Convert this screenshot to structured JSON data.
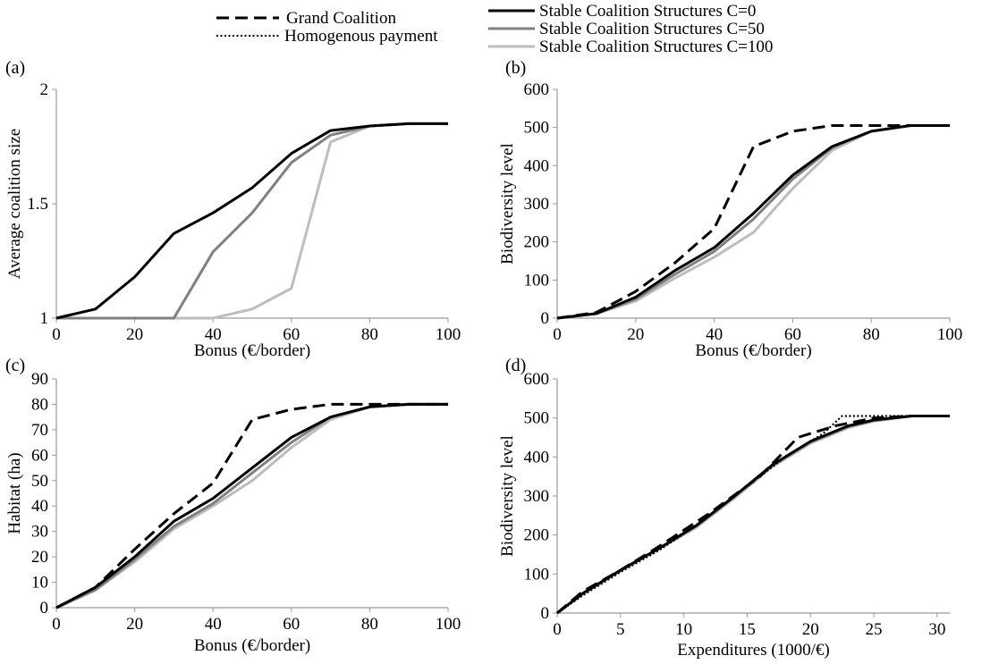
{
  "legend": [
    {
      "label": "Grand Coalition",
      "color": "#000000",
      "dash": "dashed"
    },
    {
      "label": "Homogenous payment",
      "color": "#000000",
      "dash": "dotted"
    },
    {
      "label": "Stable Coalition Structures C=0",
      "color": "#000000",
      "dash": "solid"
    },
    {
      "label": "Stable Coalition Structures C=50",
      "color": "#808080",
      "dash": "solid"
    },
    {
      "label": "Stable Coalition Structures C=100",
      "color": "#bdbdbd",
      "dash": "solid"
    }
  ],
  "chart_data": [
    {
      "panel": "(a)",
      "type": "line",
      "xlabel": "Bonus (€/border)",
      "ylabel": "Average coalition size",
      "xlim": [
        0,
        100
      ],
      "ylim": [
        1,
        2
      ],
      "xticks": [
        0,
        20,
        40,
        60,
        80,
        100
      ],
      "yticks": [
        1,
        1.5,
        2
      ],
      "ytick_labels": [
        "1",
        "1.5",
        "2"
      ],
      "grid": false,
      "series": [
        {
          "name": "Stable Coalition Structures C=0",
          "color": "#000000",
          "dash": "solid",
          "x": [
            0,
            10,
            20,
            30,
            40,
            50,
            60,
            70,
            80,
            90,
            100
          ],
          "y": [
            1.0,
            1.04,
            1.18,
            1.37,
            1.46,
            1.57,
            1.72,
            1.82,
            1.84,
            1.85,
            1.85
          ]
        },
        {
          "name": "Stable Coalition Structures C=50",
          "color": "#808080",
          "dash": "solid",
          "x": [
            0,
            10,
            20,
            30,
            40,
            50,
            60,
            70,
            80,
            90,
            100
          ],
          "y": [
            1.0,
            1.0,
            1.0,
            1.0,
            1.29,
            1.46,
            1.68,
            1.8,
            1.84,
            1.85,
            1.85
          ]
        },
        {
          "name": "Stable Coalition Structures C=100",
          "color": "#bdbdbd",
          "dash": "solid",
          "x": [
            0,
            10,
            20,
            30,
            40,
            50,
            60,
            70,
            80,
            90,
            100
          ],
          "y": [
            1.0,
            1.0,
            1.0,
            1.0,
            1.0,
            1.04,
            1.13,
            1.77,
            1.84,
            1.85,
            1.85
          ]
        }
      ]
    },
    {
      "panel": "(b)",
      "type": "line",
      "xlabel": "Bonus (€/border)",
      "ylabel": "Biodiversity level",
      "xlim": [
        0,
        100
      ],
      "ylim": [
        0,
        600
      ],
      "xticks": [
        0,
        20,
        40,
        60,
        80,
        100
      ],
      "yticks": [
        0,
        100,
        200,
        300,
        400,
        500,
        600
      ],
      "ytick_labels": [
        "0",
        "100",
        "200",
        "300",
        "400",
        "500",
        "600"
      ],
      "grid": false,
      "series": [
        {
          "name": "Grand Coalition",
          "color": "#000000",
          "dash": "dashed",
          "x": [
            0,
            10,
            20,
            30,
            40,
            50,
            60,
            70,
            80,
            90,
            100
          ],
          "y": [
            0,
            15,
            70,
            145,
            235,
            450,
            490,
            505,
            505,
            505,
            505
          ]
        },
        {
          "name": "Stable Coalition Structures C=0",
          "color": "#000000",
          "dash": "solid",
          "x": [
            0,
            10,
            20,
            30,
            40,
            50,
            60,
            70,
            80,
            90,
            100
          ],
          "y": [
            0,
            12,
            55,
            125,
            185,
            275,
            375,
            450,
            490,
            505,
            505
          ]
        },
        {
          "name": "Stable Coalition Structures C=50",
          "color": "#808080",
          "dash": "solid",
          "x": [
            0,
            10,
            20,
            30,
            40,
            50,
            60,
            70,
            80,
            90,
            100
          ],
          "y": [
            0,
            12,
            50,
            115,
            175,
            260,
            365,
            447,
            490,
            505,
            505
          ]
        },
        {
          "name": "Stable Coalition Structures C=100",
          "color": "#bdbdbd",
          "dash": "solid",
          "x": [
            0,
            10,
            20,
            30,
            40,
            50,
            60,
            70,
            80,
            90,
            100
          ],
          "y": [
            0,
            12,
            45,
            105,
            160,
            225,
            340,
            440,
            490,
            505,
            505
          ]
        }
      ]
    },
    {
      "panel": "(c)",
      "type": "line",
      "xlabel": "Bonus (€/border)",
      "ylabel": "Habitat (ha)",
      "xlim": [
        0,
        100
      ],
      "ylim": [
        0,
        90
      ],
      "xticks": [
        0,
        20,
        40,
        60,
        80,
        100
      ],
      "yticks": [
        0,
        10,
        20,
        30,
        40,
        50,
        60,
        70,
        80,
        90
      ],
      "ytick_labels": [
        "0",
        "10",
        "20",
        "30",
        "40",
        "50",
        "60",
        "70",
        "80",
        "90"
      ],
      "grid": false,
      "series": [
        {
          "name": "Grand Coalition",
          "color": "#000000",
          "dash": "dashed",
          "x": [
            0,
            10,
            20,
            30,
            40,
            50,
            60,
            70,
            80,
            90,
            100
          ],
          "y": [
            0,
            8,
            23,
            37,
            49,
            74,
            78,
            80,
            80,
            80,
            80
          ]
        },
        {
          "name": "Stable Coalition Structures C=0",
          "color": "#000000",
          "dash": "solid",
          "x": [
            0,
            10,
            20,
            30,
            40,
            50,
            60,
            70,
            80,
            90,
            100
          ],
          "y": [
            0,
            8,
            20,
            34,
            43,
            55,
            67,
            75,
            79,
            80,
            80
          ]
        },
        {
          "name": "Stable Coalition Structures C=50",
          "color": "#808080",
          "dash": "solid",
          "x": [
            0,
            10,
            20,
            30,
            40,
            50,
            60,
            70,
            80,
            90,
            100
          ],
          "y": [
            0,
            7,
            19,
            32,
            41,
            53,
            65,
            75,
            79,
            80,
            80
          ]
        },
        {
          "name": "Stable Coalition Structures C=100",
          "color": "#bdbdbd",
          "dash": "solid",
          "x": [
            0,
            10,
            20,
            30,
            40,
            50,
            60,
            70,
            80,
            90,
            100
          ],
          "y": [
            0,
            7,
            18,
            31,
            40,
            50,
            63,
            74,
            79,
            80,
            80
          ]
        }
      ]
    },
    {
      "panel": "(d)",
      "type": "line",
      "xlabel": "Expenditures (1000/€)",
      "ylabel": "Biodiversity level",
      "xlim": [
        0,
        31
      ],
      "ylim": [
        0,
        600
      ],
      "xticks": [
        0,
        5,
        10,
        15,
        20,
        25,
        30
      ],
      "yticks": [
        0,
        100,
        200,
        300,
        400,
        500,
        600
      ],
      "ytick_labels": [
        "0",
        "100",
        "200",
        "300",
        "400",
        "500",
        "600"
      ],
      "grid": false,
      "series": [
        {
          "name": "Grand Coalition",
          "color": "#000000",
          "dash": "dashed",
          "x": [
            0,
            2,
            5,
            8,
            12,
            16,
            19,
            22,
            25,
            28,
            31
          ],
          "y": [
            0,
            55,
            110,
            170,
            255,
            350,
            450,
            480,
            500,
            505,
            505
          ]
        },
        {
          "name": "Homogenous payment",
          "color": "#000000",
          "dash": "dotted",
          "x": [
            0,
            2,
            5,
            8,
            11,
            15,
            18,
            21,
            22.5,
            25,
            28,
            31
          ],
          "y": [
            0,
            45,
            105,
            160,
            225,
            325,
            400,
            460,
            505,
            505,
            505,
            505
          ]
        },
        {
          "name": "Stable Coalition Structures C=0",
          "color": "#000000",
          "dash": "solid",
          "x": [
            0,
            2,
            5,
            8,
            11,
            14,
            17,
            20,
            23,
            25,
            28,
            31
          ],
          "y": [
            0,
            50,
            110,
            165,
            225,
            300,
            380,
            440,
            480,
            495,
            505,
            505
          ]
        },
        {
          "name": "Stable Coalition Structures C=50",
          "color": "#808080",
          "dash": "solid",
          "x": [
            0,
            2,
            5,
            8,
            11,
            14,
            17,
            20,
            23,
            25,
            28,
            31
          ],
          "y": [
            0,
            50,
            110,
            165,
            223,
            298,
            378,
            438,
            478,
            493,
            505,
            505
          ]
        },
        {
          "name": "Stable Coalition Structures C=100",
          "color": "#bdbdbd",
          "dash": "solid",
          "x": [
            0,
            2,
            5,
            8,
            11,
            14,
            17,
            20,
            23,
            25,
            28,
            31
          ],
          "y": [
            0,
            48,
            108,
            163,
            220,
            295,
            375,
            435,
            475,
            492,
            505,
            505
          ]
        }
      ]
    }
  ]
}
